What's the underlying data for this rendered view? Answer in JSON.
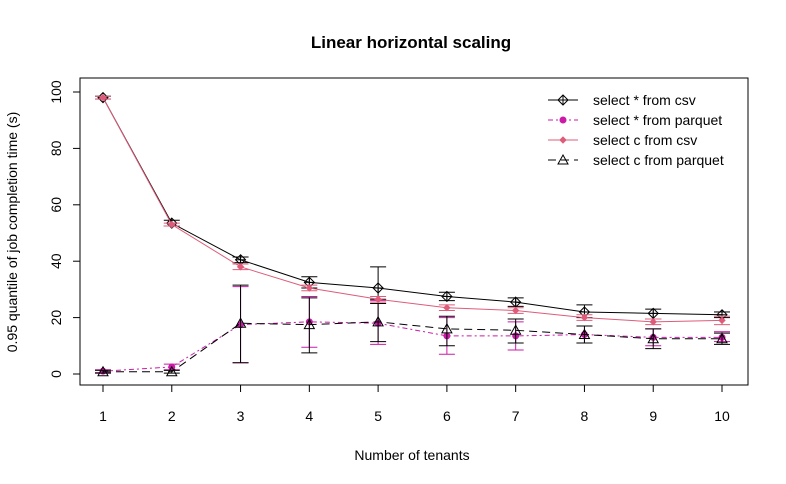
{
  "chart_data": {
    "type": "line",
    "title": "Linear horizontal scaling",
    "xlabel": "Number of tenants",
    "ylabel": "0.95 quantile of job completion time (s)",
    "x": [
      1,
      2,
      3,
      4,
      5,
      6,
      7,
      8,
      9,
      10
    ],
    "xlim": [
      1,
      10
    ],
    "ylim": [
      0,
      100
    ],
    "x_ticks": [
      1,
      2,
      3,
      4,
      5,
      6,
      7,
      8,
      9,
      10
    ],
    "y_ticks": [
      0,
      20,
      40,
      60,
      80,
      100
    ],
    "legend_position": "top-right",
    "grid": false,
    "series": [
      {
        "name": "select * from csv",
        "color": "#000000",
        "marker": "diamond",
        "dash": "",
        "values": [
          98,
          53.5,
          40.5,
          32.5,
          30.5,
          27.5,
          25.5,
          22,
          21.5,
          21
        ],
        "err_low": [
          97.5,
          52.5,
          39.5,
          30.5,
          26.5,
          26,
          24,
          20,
          19.5,
          20
        ],
        "err_high": [
          98.5,
          54.5,
          41.5,
          34.5,
          38,
          29,
          27,
          24.5,
          23,
          22
        ]
      },
      {
        "name": "select * from parquet",
        "color": "#cc1aa8",
        "marker": "filled-circle",
        "dash": "5,3,2,3",
        "values": [
          1,
          2.5,
          17.5,
          18.5,
          18,
          13.5,
          13.5,
          14,
          13,
          13
        ],
        "err_low": [
          0.5,
          1.5,
          4,
          9.5,
          10.5,
          7,
          8.5,
          11,
          10,
          11.5
        ],
        "err_high": [
          1.5,
          3.5,
          31,
          27.5,
          26,
          20,
          18.5,
          17,
          16,
          15
        ]
      },
      {
        "name": "select c from csv",
        "color": "#de5c7a",
        "marker": "small-diamond",
        "dash": "",
        "values": [
          98,
          53,
          38,
          30.5,
          26.5,
          23.5,
          22.5,
          20,
          18.5,
          19
        ],
        "err_low": [
          97.5,
          52.5,
          37,
          29.5,
          25.5,
          22.5,
          21.5,
          19,
          17.5,
          17.5
        ],
        "err_high": [
          98.5,
          53.5,
          39,
          31.5,
          27.5,
          24.5,
          23.5,
          21,
          19.5,
          20.5
        ]
      },
      {
        "name": "select c from parquet",
        "color": "#000000",
        "marker": "triangle",
        "dash": "8,5",
        "values": [
          0.8,
          0.8,
          18,
          17.5,
          18.5,
          16,
          15.5,
          14,
          12.5,
          12.5
        ],
        "err_low": [
          0.3,
          0.3,
          4,
          7.5,
          11.5,
          10,
          11,
          11,
          9,
          10.5
        ],
        "err_high": [
          1.3,
          1.3,
          31.5,
          27,
          25,
          20.5,
          19.5,
          17,
          16,
          14.5
        ]
      }
    ]
  }
}
